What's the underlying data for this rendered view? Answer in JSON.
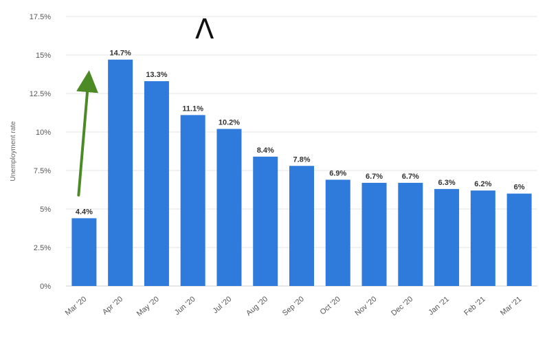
{
  "chart_data": {
    "type": "bar",
    "title": "",
    "xlabel": "",
    "ylabel": "Unemployment rate",
    "ylim": [
      0,
      17.5
    ],
    "yticks": [
      {
        "value": 0,
        "label": "0%"
      },
      {
        "value": 2.5,
        "label": "2.5%"
      },
      {
        "value": 5,
        "label": "5%"
      },
      {
        "value": 7.5,
        "label": "7.5%"
      },
      {
        "value": 10,
        "label": "10%"
      },
      {
        "value": 12.5,
        "label": "12.5%"
      },
      {
        "value": 15,
        "label": "15%"
      },
      {
        "value": 17.5,
        "label": "17.5%"
      }
    ],
    "categories": [
      "Mar '20",
      "Apr '20",
      "May '20",
      "Jun '20",
      "Jul '20",
      "Aug '20",
      "Sep '20",
      "Oct '20",
      "Nov '20",
      "Dec '20",
      "Jan '21",
      "Feb '21",
      "Mar '21"
    ],
    "values": [
      4.4,
      14.7,
      13.3,
      11.1,
      10.2,
      8.4,
      7.8,
      6.9,
      6.7,
      6.7,
      6.3,
      6.2,
      6
    ],
    "data_labels": [
      "4.4%",
      "14.7%",
      "13.3%",
      "11.1%",
      "10.2%",
      "8.4%",
      "7.8%",
      "6.9%",
      "6.7%",
      "6.7%",
      "6.3%",
      "6.2%",
      "6%"
    ],
    "grid": true,
    "annotations": [
      {
        "type": "arrow",
        "from_category": "Mar '20",
        "from_value": 5.9,
        "to_category": "Mar '20",
        "to_value": 13.3,
        "color": "#4c8a26"
      },
      {
        "type": "caret",
        "symbol": "Λ",
        "category": "Jun '20",
        "value": 16.7,
        "color": "#111111"
      }
    ],
    "colors": {
      "bar": "#2f7bdc",
      "grid": "#e5e5e5",
      "arrow": "#4c8a26"
    }
  }
}
